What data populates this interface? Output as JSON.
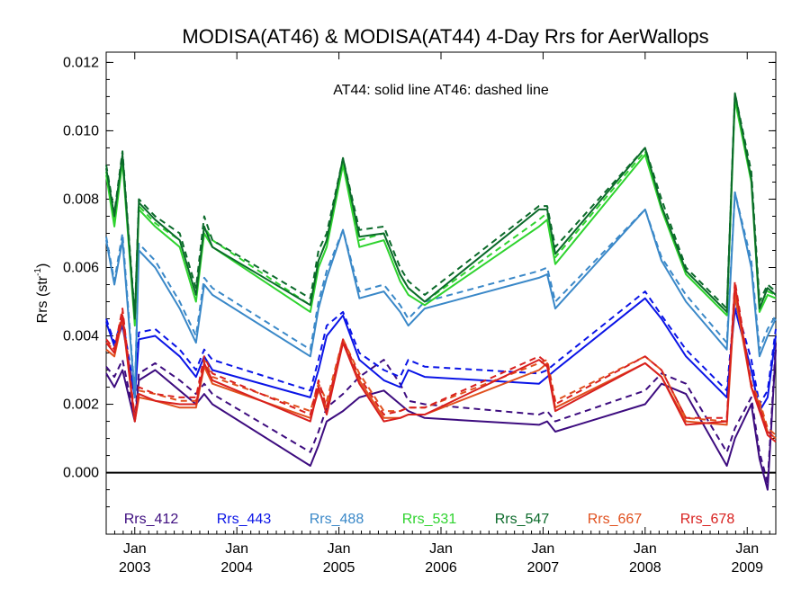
{
  "chart_data": {
    "type": "line",
    "title": "MODISA(AT46) & MODISA(AT44) 4-Day Rrs for AerWallops",
    "ylabel_main": "Rrs (str",
    "ylabel_sup": "-1",
    "ylabel_close": ")",
    "xlabel": "",
    "annotation": "AT44: solid line   AT46: dashed line",
    "ylim": [
      -0.0018,
      0.0123
    ],
    "xlim": [
      0,
      82
    ],
    "y_ticks": [
      "0.000",
      "0.002",
      "0.004",
      "0.006",
      "0.008",
      "0.010",
      "0.012"
    ],
    "y_tick_values": [
      0.0,
      0.002,
      0.004,
      0.006,
      0.008,
      0.01,
      0.012
    ],
    "x_ticks": [
      {
        "month": "Jan",
        "year": "2003",
        "x": 3.5
      },
      {
        "month": "Jan",
        "year": "2004",
        "x": 16
      },
      {
        "month": "Jan",
        "year": "2005",
        "x": 28.5
      },
      {
        "month": "Jan",
        "year": "2006",
        "x": 41
      },
      {
        "month": "Jan",
        "year": "2007",
        "x": 53.5
      },
      {
        "month": "Jan",
        "year": "2008",
        "x": 66
      },
      {
        "month": "Jan",
        "year": "2009",
        "x": 78.5
      }
    ],
    "zero_line": 0.0,
    "x": [
      0,
      1,
      2,
      3.5,
      4,
      6,
      9,
      11,
      12,
      13,
      25,
      26,
      27,
      29,
      31,
      34,
      36,
      37,
      39,
      53,
      54,
      55,
      66,
      68,
      71,
      76,
      77,
      79,
      80,
      81,
      82
    ],
    "series": [
      {
        "name": "Rrs_412",
        "color": "#3d0c7f",
        "solid": [
          0.0029,
          0.0025,
          0.003,
          0.0015,
          0.0027,
          0.003,
          0.0024,
          0.002,
          0.0023,
          0.002,
          0.0002,
          0.0008,
          0.0015,
          0.0018,
          0.0022,
          0.0024,
          0.002,
          0.0018,
          0.0016,
          0.0014,
          0.0015,
          0.0012,
          0.002,
          0.0026,
          0.0023,
          0.0002,
          0.001,
          0.002,
          0.0004,
          -0.0005,
          0.0036
        ],
        "dashed": [
          0.0031,
          0.0028,
          0.0033,
          0.0016,
          0.0029,
          0.0032,
          0.0027,
          0.0023,
          0.0026,
          0.0023,
          0.0006,
          0.0012,
          0.0019,
          0.0023,
          0.0028,
          0.0033,
          0.0026,
          0.0021,
          0.002,
          0.0017,
          0.0018,
          0.0015,
          0.0024,
          0.0029,
          0.0026,
          0.0006,
          0.0013,
          0.0022,
          0.0006,
          -0.0003,
          0.0038
        ]
      },
      {
        "name": "Rrs_443",
        "color": "#0a14e6",
        "solid": [
          0.0044,
          0.0037,
          0.0043,
          0.0022,
          0.0039,
          0.004,
          0.0034,
          0.0028,
          0.0034,
          0.003,
          0.0022,
          0.003,
          0.004,
          0.0046,
          0.0033,
          0.0027,
          0.0025,
          0.003,
          0.0028,
          0.0026,
          0.0028,
          0.003,
          0.0051,
          0.0045,
          0.0034,
          0.0022,
          0.0048,
          0.003,
          0.0018,
          0.0022,
          0.004
        ],
        "dashed": [
          0.0045,
          0.0038,
          0.0045,
          0.0023,
          0.0041,
          0.0042,
          0.0036,
          0.003,
          0.0036,
          0.0033,
          0.0024,
          0.0033,
          0.0043,
          0.0047,
          0.0035,
          0.003,
          0.0028,
          0.0033,
          0.0031,
          0.0029,
          0.003,
          0.0032,
          0.0053,
          0.0046,
          0.0036,
          0.0024,
          0.005,
          0.0033,
          0.002,
          0.0024,
          0.0042
        ]
      },
      {
        "name": "Rrs_488",
        "color": "#3a88c8",
        "solid": [
          0.0068,
          0.0055,
          0.0068,
          0.0022,
          0.0065,
          0.006,
          0.0048,
          0.0038,
          0.0055,
          0.0052,
          0.0034,
          0.0048,
          0.0057,
          0.0071,
          0.0051,
          0.0053,
          0.0047,
          0.0043,
          0.0048,
          0.0057,
          0.0058,
          0.0048,
          0.0077,
          0.0062,
          0.005,
          0.0036,
          0.0082,
          0.006,
          0.0034,
          0.004,
          0.0045
        ],
        "dashed": [
          0.0069,
          0.0056,
          0.007,
          0.0023,
          0.0067,
          0.0062,
          0.005,
          0.004,
          0.0057,
          0.0054,
          0.0036,
          0.005,
          0.0059,
          0.0071,
          0.0053,
          0.0055,
          0.0049,
          0.0045,
          0.005,
          0.0059,
          0.006,
          0.005,
          0.0077,
          0.0063,
          0.0052,
          0.0038,
          0.0082,
          0.0062,
          0.0036,
          0.0042,
          0.0046
        ]
      },
      {
        "name": "Rrs_531",
        "color": "#2ed32e",
        "solid": [
          0.0087,
          0.0072,
          0.0091,
          0.0043,
          0.0077,
          0.0072,
          0.0066,
          0.005,
          0.007,
          0.0066,
          0.0047,
          0.006,
          0.0066,
          0.009,
          0.0066,
          0.0068,
          0.0056,
          0.0052,
          0.0049,
          0.0072,
          0.0074,
          0.0061,
          0.0093,
          0.0077,
          0.0058,
          0.0046,
          0.0109,
          0.0085,
          0.0047,
          0.0052,
          0.0051
        ],
        "dashed": [
          0.0088,
          0.0073,
          0.0092,
          0.0044,
          0.0078,
          0.0073,
          0.0068,
          0.0052,
          0.0072,
          0.0068,
          0.0049,
          0.0062,
          0.0068,
          0.0091,
          0.0068,
          0.007,
          0.0058,
          0.0054,
          0.005,
          0.0074,
          0.0076,
          0.0063,
          0.0094,
          0.0078,
          0.0059,
          0.0047,
          0.011,
          0.0087,
          0.0049,
          0.0053,
          0.0052
        ]
      },
      {
        "name": "Rrs_547",
        "color": "#0b6a2a",
        "solid": [
          0.0089,
          0.0075,
          0.0093,
          0.0045,
          0.0079,
          0.0074,
          0.0068,
          0.0052,
          0.0072,
          0.0066,
          0.0049,
          0.0062,
          0.0068,
          0.0092,
          0.0069,
          0.007,
          0.0058,
          0.0054,
          0.005,
          0.0077,
          0.0077,
          0.0064,
          0.0095,
          0.0078,
          0.0059,
          0.0047,
          0.0111,
          0.0086,
          0.0048,
          0.0054,
          0.0052
        ],
        "dashed": [
          0.009,
          0.0076,
          0.0094,
          0.0046,
          0.008,
          0.0075,
          0.007,
          0.0054,
          0.0075,
          0.0068,
          0.0051,
          0.0065,
          0.007,
          0.0092,
          0.0071,
          0.0072,
          0.006,
          0.0056,
          0.0052,
          0.0078,
          0.0078,
          0.0066,
          0.0095,
          0.008,
          0.006,
          0.0048,
          0.0111,
          0.0088,
          0.005,
          0.0055,
          0.0053
        ]
      },
      {
        "name": "Rrs_667",
        "color": "#e0501e",
        "solid": [
          0.0036,
          0.0034,
          0.0045,
          0.0015,
          0.0022,
          0.0021,
          0.0019,
          0.0019,
          0.0031,
          0.0026,
          0.0016,
          0.0024,
          0.0019,
          0.0038,
          0.0027,
          0.0016,
          0.0016,
          0.0017,
          0.0017,
          0.003,
          0.0032,
          0.0019,
          0.0032,
          0.0028,
          0.0015,
          0.0014,
          0.0052,
          0.0025,
          0.002,
          0.0012,
          0.001
        ],
        "dashed": [
          0.0038,
          0.0036,
          0.0047,
          0.0016,
          0.0024,
          0.0023,
          0.0021,
          0.0021,
          0.0033,
          0.0028,
          0.0018,
          0.0026,
          0.0021,
          0.0039,
          0.0029,
          0.0018,
          0.0018,
          0.0019,
          0.0019,
          0.0032,
          0.0033,
          0.0021,
          0.0034,
          0.003,
          0.0016,
          0.0015,
          0.0053,
          0.0026,
          0.0021,
          0.0013,
          0.0011
        ]
      },
      {
        "name": "Rrs_678",
        "color": "#d8201e",
        "solid": [
          0.0038,
          0.0035,
          0.0046,
          0.0015,
          0.0023,
          0.0021,
          0.002,
          0.002,
          0.0032,
          0.0027,
          0.0015,
          0.0025,
          0.0017,
          0.0038,
          0.0026,
          0.0015,
          0.0016,
          0.0017,
          0.0017,
          0.0033,
          0.0031,
          0.0018,
          0.0032,
          0.0028,
          0.0014,
          0.0015,
          0.0055,
          0.0025,
          0.0018,
          0.0011,
          0.0009
        ],
        "dashed": [
          0.0039,
          0.0036,
          0.0048,
          0.0016,
          0.0025,
          0.0023,
          0.0022,
          0.0022,
          0.0034,
          0.0029,
          0.0017,
          0.0027,
          0.0019,
          0.0039,
          0.0028,
          0.0017,
          0.0018,
          0.0019,
          0.0019,
          0.0034,
          0.0032,
          0.002,
          0.0034,
          0.003,
          0.0016,
          0.0016,
          0.0056,
          0.0026,
          0.0019,
          0.0012,
          0.001
        ]
      }
    ],
    "legend_placement": "bottom-inside"
  }
}
